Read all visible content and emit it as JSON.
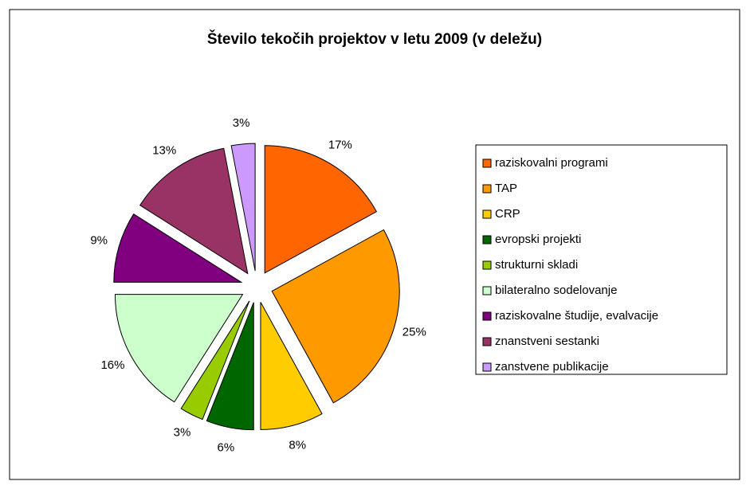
{
  "chart_data": {
    "type": "pie",
    "title": "Število tekočih projektov v letu 2009 (v deležu)",
    "categories": [
      "raziskovalni programi",
      "TAP",
      "CRP",
      "evropski projekti",
      "strukturni skladi",
      "bilateralno sodelovanje",
      "raziskovalne študije, evalvacije",
      "znanstveni sestanki",
      "zanstvene publikacije"
    ],
    "values": [
      17,
      25,
      8,
      6,
      3,
      16,
      9,
      13,
      3
    ],
    "value_labels": [
      "17%",
      "25%",
      "8%",
      "6%",
      "3%",
      "16%",
      "9%",
      "13%",
      "3%"
    ],
    "colors": [
      "#FF6600",
      "#FF9900",
      "#FFCC00",
      "#006600",
      "#99CC00",
      "#CCFFCC",
      "#800080",
      "#993366",
      "#CC99FF"
    ],
    "legend": "right"
  }
}
